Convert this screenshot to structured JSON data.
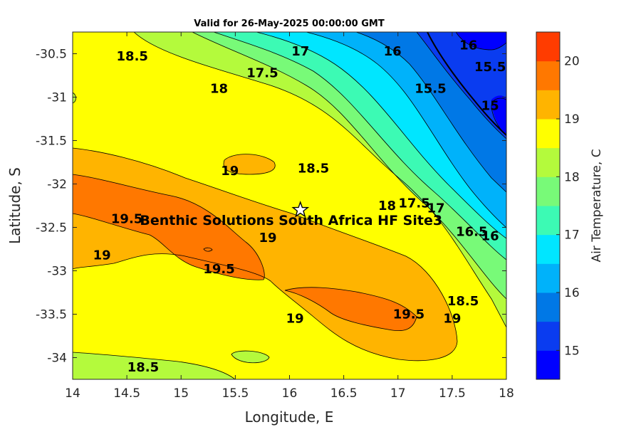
{
  "chart_data": {
    "type": "contour",
    "title": "Valid for 26-May-2025 00:00:00 GMT",
    "xlabel": "Longitude, E",
    "ylabel": "Latitude, S",
    "colorbar_label": "Air Temperature, C",
    "xlim": [
      14,
      18
    ],
    "ylim": [
      -34.25,
      -30.25
    ],
    "xticks": [
      14,
      14.5,
      15,
      15.5,
      16,
      16.5,
      17,
      17.5,
      18
    ],
    "xtick_labels": [
      "14",
      "14.5",
      "15",
      "15.5",
      "16",
      "16.5",
      "17",
      "17.5",
      "18"
    ],
    "yticks": [
      -30.5,
      -31,
      -31.5,
      -32,
      -32.5,
      -33,
      -33.5,
      -34
    ],
    "ytick_labels": [
      "-30.5",
      "-31",
      "-31.5",
      "-32",
      "-32.5",
      "-33",
      "-33.5",
      "-34"
    ],
    "colorbar": {
      "range": [
        14.5,
        20.5
      ],
      "levels": [
        14.5,
        15,
        15.5,
        16,
        16.5,
        17,
        17.5,
        18,
        18.5,
        19,
        19.5,
        20,
        20.5
      ],
      "colors": [
        "#0000ff",
        "#0a3cf0",
        "#0078e6",
        "#00b2fa",
        "#00e6ff",
        "#3cfab4",
        "#78fa78",
        "#b4fa3c",
        "#ffff00",
        "#ffb400",
        "#ff7800",
        "#ff3c00"
      ],
      "ticks": [
        15,
        16,
        17,
        18,
        19,
        20
      ],
      "tick_labels": [
        "15",
        "16",
        "17",
        "18",
        "19",
        "20"
      ]
    },
    "contour_labels": [
      {
        "text": "18.5",
        "lon": 14.55,
        "lat": -30.53
      },
      {
        "text": "18",
        "lon": 15.35,
        "lat": -30.9
      },
      {
        "text": "17.5",
        "lon": 15.75,
        "lat": -30.72
      },
      {
        "text": "17",
        "lon": 16.1,
        "lat": -30.47
      },
      {
        "text": "16",
        "lon": 16.95,
        "lat": -30.47
      },
      {
        "text": "16",
        "lon": 17.65,
        "lat": -30.4
      },
      {
        "text": "15.5",
        "lon": 17.3,
        "lat": -30.9
      },
      {
        "text": "15.5",
        "lon": 17.85,
        "lat": -30.65
      },
      {
        "text": "15",
        "lon": 17.85,
        "lat": -31.1
      },
      {
        "text": "19",
        "lon": 15.45,
        "lat": -31.85
      },
      {
        "text": "18.5",
        "lon": 16.22,
        "lat": -31.82
      },
      {
        "text": "19.5",
        "lon": 14.5,
        "lat": -32.4
      },
      {
        "text": "19",
        "lon": 15.8,
        "lat": -32.62
      },
      {
        "text": "18",
        "lon": 16.9,
        "lat": -32.25
      },
      {
        "text": "17.5",
        "lon": 17.15,
        "lat": -32.22
      },
      {
        "text": "17",
        "lon": 17.35,
        "lat": -32.28
      },
      {
        "text": "16.5",
        "lon": 17.68,
        "lat": -32.55
      },
      {
        "text": "16",
        "lon": 17.85,
        "lat": -32.6
      },
      {
        "text": "19",
        "lon": 14.27,
        "lat": -32.82
      },
      {
        "text": "19.5",
        "lon": 15.35,
        "lat": -32.98
      },
      {
        "text": "19",
        "lon": 16.05,
        "lat": -33.55
      },
      {
        "text": "19.5",
        "lon": 17.1,
        "lat": -33.5
      },
      {
        "text": "18.5",
        "lon": 17.6,
        "lat": -33.35
      },
      {
        "text": "19",
        "lon": 17.5,
        "lat": -33.55
      },
      {
        "text": "18.5",
        "lon": 14.65,
        "lat": -34.11
      }
    ],
    "site": {
      "name": "Benthic Solutions South Africa HF Site3",
      "lon": 16.1,
      "lat": -32.3
    }
  }
}
